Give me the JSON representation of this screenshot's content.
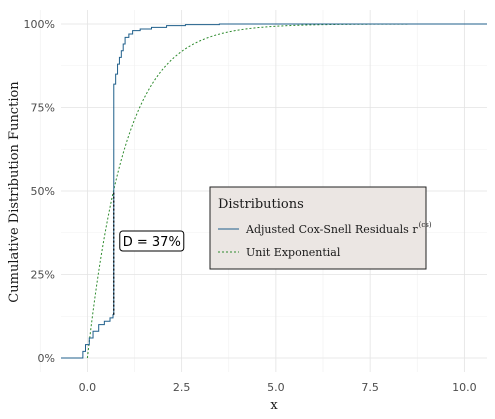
{
  "chart_data": {
    "type": "line",
    "xlabel": "x",
    "ylabel": "Cumulative Distribution Function",
    "xlim": [
      -0.7,
      10.6
    ],
    "ylim": [
      0,
      1
    ],
    "x_ticks": [
      0,
      2.5,
      5,
      7.5,
      10
    ],
    "x_tick_labels": [
      "0.0",
      "2.5",
      "5.0",
      "7.5",
      "10.0"
    ],
    "y_ticks": [
      0,
      0.25,
      0.5,
      0.75,
      1.0
    ],
    "y_tick_labels": [
      "0%",
      "25%",
      "50%",
      "75%",
      "100%"
    ],
    "grid": true,
    "legend": {
      "title": "Distributions",
      "placement": "center-right",
      "entries": [
        {
          "label": "Adjusted Cox-Snell Residuals r",
          "superscript": "(cs)",
          "color": "#1f5f8b",
          "dash": "solid"
        },
        {
          "label": "Unit Exponential",
          "color": "#2e8b2e",
          "dash": "dotted"
        }
      ]
    },
    "series": [
      {
        "name": "Adjusted Cox-Snell Residuals r(cs)",
        "color": "#1f5f8b",
        "step": true,
        "points": [
          [
            -0.7,
            0
          ],
          [
            -0.15,
            0
          ],
          [
            -0.12,
            0.02
          ],
          [
            -0.05,
            0.04
          ],
          [
            0.05,
            0.06
          ],
          [
            0.15,
            0.08
          ],
          [
            0.3,
            0.1
          ],
          [
            0.45,
            0.11
          ],
          [
            0.6,
            0.12
          ],
          [
            0.68,
            0.13
          ],
          [
            0.7,
            0.82
          ],
          [
            0.75,
            0.85
          ],
          [
            0.8,
            0.88
          ],
          [
            0.85,
            0.9
          ],
          [
            0.9,
            0.92
          ],
          [
            0.95,
            0.94
          ],
          [
            1.0,
            0.96
          ],
          [
            1.1,
            0.97
          ],
          [
            1.2,
            0.98
          ],
          [
            1.4,
            0.985
          ],
          [
            1.7,
            0.99
          ],
          [
            2.1,
            0.995
          ],
          [
            2.6,
            0.998
          ],
          [
            3.5,
            1.0
          ],
          [
            10.6,
            1.0
          ]
        ]
      },
      {
        "name": "Unit Exponential",
        "color": "#2e8b2e",
        "function": "1-exp(-x)",
        "domain": [
          0,
          10.6
        ]
      }
    ],
    "annotation": {
      "label": "D = 37%",
      "segment_x": 0.7,
      "segment_y": [
        0.13,
        0.5
      ]
    }
  }
}
